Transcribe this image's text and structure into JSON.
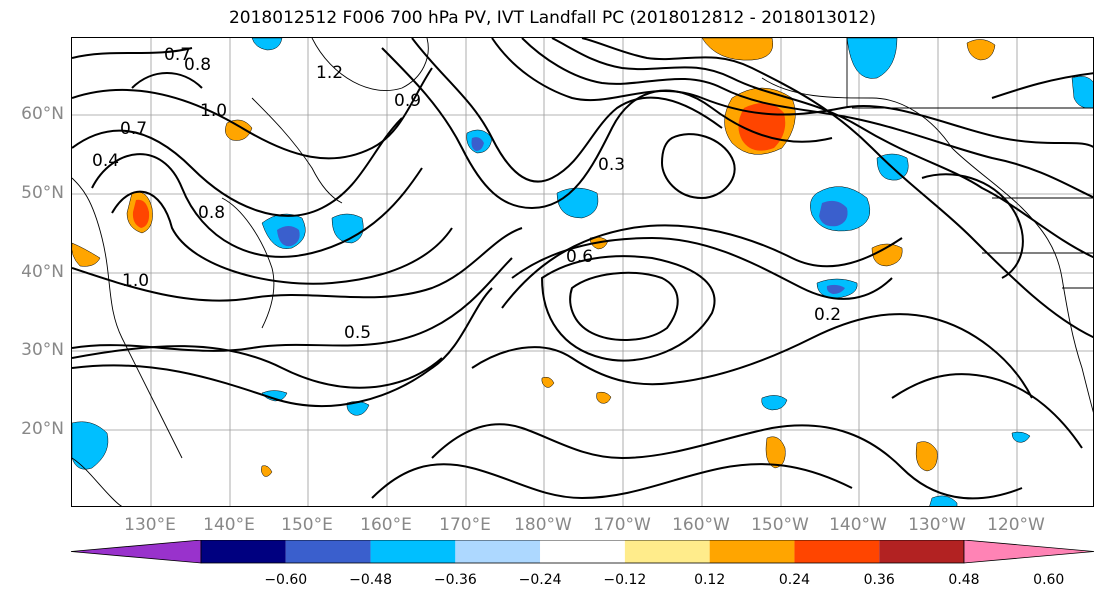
{
  "title": "2018012512 F006 700 hPa PV, IVT Landfall PC (2018012812 - 2018013012)",
  "map": {
    "lat_labels": [
      "60°N",
      "50°N",
      "40°N",
      "30°N",
      "20°N"
    ],
    "lon_labels": [
      "130°E",
      "140°E",
      "150°E",
      "160°E",
      "170°E",
      "180°W",
      "170°W",
      "160°W",
      "150°W",
      "140°W",
      "130°W",
      "120°W"
    ],
    "contour_labels": [
      "0.7",
      "0.8",
      "1.2",
      "1.0",
      "0.4",
      "0.9",
      "0.3",
      "0.6",
      "0.5",
      "0.2",
      "0.8",
      "1.0",
      "0.7"
    ],
    "grid": true
  },
  "colorbar": {
    "colors": [
      "#9932CC",
      "#000080",
      "#3A5FCD",
      "#00BFFF",
      "#ADD8FF",
      "#FFFFFF",
      "#FFEC8B",
      "#FFA500",
      "#FF4500",
      "#B22222",
      "#FF83B5"
    ],
    "tick_labels": [
      "−0.60",
      "−0.48",
      "−0.36",
      "−0.24",
      "−0.12",
      "0.12",
      "0.24",
      "0.36",
      "0.48",
      "0.60"
    ]
  }
}
